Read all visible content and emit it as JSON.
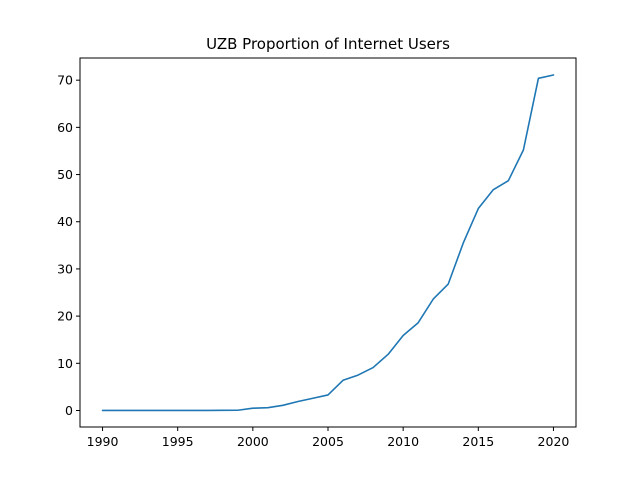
{
  "chart_data": {
    "type": "line",
    "title": "UZB Proportion of Internet Users",
    "xlabel": "",
    "ylabel": "",
    "xlim": [
      1988.5,
      2021.5
    ],
    "ylim": [
      -3.5,
      74.7
    ],
    "xticks": [
      1990,
      1995,
      2000,
      2005,
      2010,
      2015,
      2020
    ],
    "yticks": [
      0,
      10,
      20,
      30,
      40,
      50,
      60,
      70
    ],
    "grid": false,
    "series": [
      {
        "color": "#1f77b4",
        "x": [
          1990,
          1991,
          1992,
          1993,
          1994,
          1995,
          1996,
          1997,
          1998,
          1999,
          2000,
          2001,
          2002,
          2003,
          2004,
          2005,
          2006,
          2007,
          2008,
          2009,
          2010,
          2011,
          2012,
          2013,
          2014,
          2015,
          2016,
          2017,
          2018,
          2019,
          2020
        ],
        "y": [
          0,
          0,
          0,
          0,
          0,
          0.001,
          0.002,
          0.01,
          0.03,
          0.05,
          0.48,
          0.6,
          1.1,
          1.9,
          2.6,
          3.3,
          6.4,
          7.5,
          9.1,
          11.9,
          15.9,
          18.6,
          23.6,
          26.8,
          35.5,
          42.8,
          46.8,
          48.7,
          55.2,
          70.4,
          71.1
        ]
      }
    ]
  }
}
